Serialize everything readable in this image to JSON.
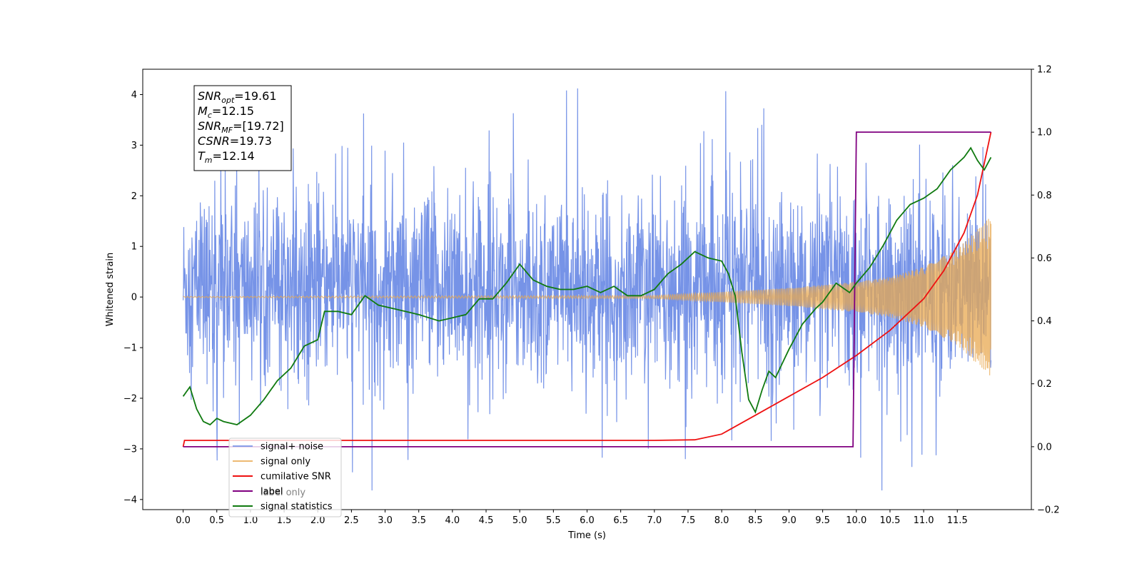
{
  "chart_data": {
    "type": "line",
    "xlabel": "Time (s)",
    "ylabel": "Whitened strain",
    "xlim": [
      -0.6,
      12.6
    ],
    "ylim": [
      -4.2,
      4.5
    ],
    "y2lim": [
      -0.2,
      1.2
    ],
    "x_ticks": [
      "0.0",
      "0.5",
      "1.0",
      "1.5",
      "2.0",
      "2.5",
      "3.0",
      "3.5",
      "4.0",
      "4.5",
      "5.0",
      "5.5",
      "6.0",
      "6.5",
      "7.0",
      "7.5",
      "8.0",
      "8.5",
      "9.0",
      "9.5",
      "10.0",
      "10.5",
      "11.0",
      "11.5"
    ],
    "x_tick_values": [
      0,
      0.5,
      1,
      1.5,
      2,
      2.5,
      3,
      3.5,
      4,
      4.5,
      5,
      5.5,
      6,
      6.5,
      7,
      7.5,
      8,
      8.5,
      9,
      9.5,
      10,
      10.5,
      11,
      11.5
    ],
    "y_ticks": [
      "−4",
      "−3",
      "−2",
      "−1",
      "0",
      "1",
      "2",
      "3",
      "4"
    ],
    "y_tick_values": [
      -4,
      -3,
      -2,
      -1,
      0,
      1,
      2,
      3,
      4
    ],
    "y2_ticks": [
      "−0.2",
      "0.0",
      "0.2",
      "0.4",
      "0.6",
      "0.8",
      "1.0",
      "1.2"
    ],
    "y2_tick_values": [
      -0.2,
      0,
      0.2,
      0.4,
      0.6,
      0.8,
      1.0,
      1.2
    ],
    "annotation": {
      "lines": [
        {
          "main": "SNR",
          "sub": "opt",
          "rest": "=19.61"
        },
        {
          "main": "M",
          "sub": "c",
          "rest": "=12.15"
        },
        {
          "main": "SNR",
          "sub": "MF",
          "rest": "=[19.72]"
        },
        {
          "main": "CSNR",
          "sub": "",
          "rest": "=19.73"
        },
        {
          "main": "T",
          "sub": "m",
          "rest": "=12.14"
        }
      ]
    },
    "legend": {
      "placement": "lower-left",
      "entries": [
        "signal+ noise",
        "signal only",
        "cumilative SNR",
        "label",
        "signal statistics"
      ],
      "hidden_entries": [
        "label only"
      ]
    },
    "series": [
      {
        "name": "signal+ noise",
        "axis": "left",
        "color": "#6f8de6",
        "kind": "noise",
        "t_start": 0.0,
        "t_end": 12.0,
        "core_band": [
          -1.6,
          2.0
        ],
        "max_spike": 4.12,
        "min_spike": -3.82
      },
      {
        "name": "signal only",
        "axis": "left",
        "color": "#e8a850",
        "kind": "chirp",
        "t_start": 0.0,
        "t_end": 12.0,
        "envelope_t": [
          0,
          7.0,
          8.0,
          9.0,
          10.0,
          10.5,
          11.0,
          11.5,
          12.0
        ],
        "envelope_amp": [
          0.01,
          0.03,
          0.1,
          0.18,
          0.3,
          0.4,
          0.6,
          0.95,
          1.6
        ]
      },
      {
        "name": "cumilative SNR",
        "axis": "right",
        "color": "#ee1111",
        "x": [
          0.0,
          0.02,
          1.0,
          3.0,
          5.0,
          7.0,
          7.6,
          8.0,
          8.5,
          9.0,
          9.5,
          10.0,
          10.5,
          11.0,
          11.3,
          11.6,
          11.8,
          12.0
        ],
        "y": [
          0.0,
          0.02,
          0.02,
          0.02,
          0.02,
          0.02,
          0.022,
          0.04,
          0.1,
          0.16,
          0.22,
          0.29,
          0.37,
          0.47,
          0.56,
          0.68,
          0.8,
          1.0
        ]
      },
      {
        "name": "label",
        "axis": "right",
        "color": "#800080",
        "x": [
          0.0,
          9.95,
          10.0,
          12.0
        ],
        "y": [
          0.0,
          0.0,
          1.0,
          1.0
        ]
      },
      {
        "name": "signal statistics",
        "axis": "right",
        "color": "#107a10",
        "x": [
          0.0,
          0.1,
          0.2,
          0.3,
          0.4,
          0.5,
          0.6,
          0.8,
          1.0,
          1.2,
          1.4,
          1.6,
          1.8,
          2.0,
          2.1,
          2.3,
          2.5,
          2.7,
          2.9,
          3.1,
          3.3,
          3.5,
          3.8,
          4.0,
          4.2,
          4.4,
          4.6,
          4.8,
          5.0,
          5.2,
          5.4,
          5.6,
          5.8,
          6.0,
          6.2,
          6.4,
          6.6,
          6.8,
          7.0,
          7.2,
          7.4,
          7.6,
          7.8,
          8.0,
          8.1,
          8.2,
          8.3,
          8.4,
          8.5,
          8.6,
          8.7,
          8.8,
          9.0,
          9.2,
          9.4,
          9.5,
          9.7,
          9.9,
          10.0,
          10.2,
          10.4,
          10.6,
          10.8,
          11.0,
          11.2,
          11.4,
          11.6,
          11.7,
          11.8,
          11.9,
          12.0
        ],
        "y": [
          0.16,
          0.19,
          0.12,
          0.08,
          0.07,
          0.09,
          0.08,
          0.07,
          0.1,
          0.15,
          0.21,
          0.25,
          0.32,
          0.34,
          0.43,
          0.43,
          0.42,
          0.48,
          0.45,
          0.44,
          0.43,
          0.42,
          0.4,
          0.41,
          0.42,
          0.47,
          0.47,
          0.52,
          0.58,
          0.53,
          0.51,
          0.5,
          0.5,
          0.51,
          0.49,
          0.51,
          0.48,
          0.48,
          0.5,
          0.55,
          0.58,
          0.62,
          0.6,
          0.59,
          0.55,
          0.48,
          0.3,
          0.15,
          0.11,
          0.18,
          0.24,
          0.22,
          0.31,
          0.39,
          0.44,
          0.46,
          0.52,
          0.49,
          0.52,
          0.57,
          0.64,
          0.72,
          0.77,
          0.79,
          0.82,
          0.88,
          0.92,
          0.95,
          0.91,
          0.88,
          0.92
        ]
      }
    ]
  }
}
